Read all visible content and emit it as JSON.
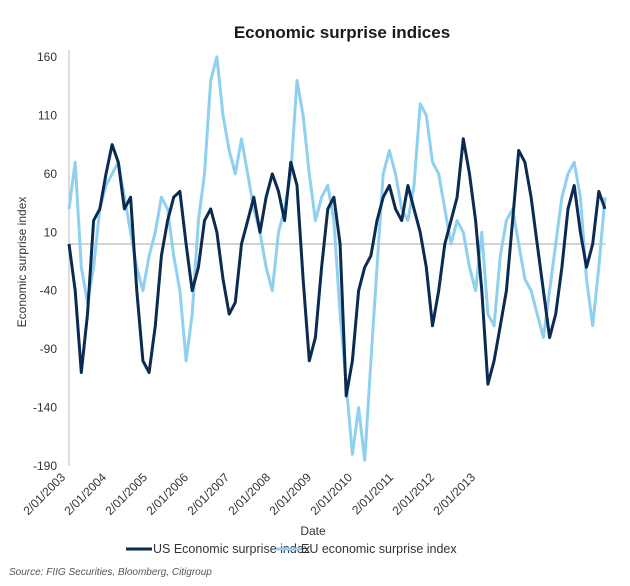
{
  "chart_data": {
    "type": "line",
    "title": "Economic surprise indices",
    "xlabel": "Date",
    "ylabel": "Economic surprise index",
    "x_range": [
      2003.0,
      2013.75
    ],
    "ylim": [
      -190,
      160
    ],
    "yticks": [
      160,
      110,
      60,
      10,
      -40,
      -90,
      -140,
      -190
    ],
    "xtick_labels": [
      "2/01/2003",
      "2/01/2004",
      "2/01/2005",
      "2/01/2006",
      "2/01/2007",
      "2/01/2008",
      "2/01/2009",
      "2/01/2010",
      "2/01/2011",
      "2/01/2012",
      "2/01/2013"
    ],
    "grid": false,
    "reference_line": 0,
    "legend_position": "bottom",
    "series": [
      {
        "name": "US Economic surprise index",
        "color": "#0b2b52",
        "values": [
          0,
          -40,
          -110,
          -60,
          20,
          30,
          60,
          85,
          70,
          30,
          40,
          -40,
          -100,
          -110,
          -70,
          -10,
          20,
          40,
          45,
          0,
          -40,
          -20,
          20,
          30,
          10,
          -30,
          -60,
          -50,
          0,
          20,
          40,
          10,
          40,
          60,
          45,
          20,
          70,
          50,
          -30,
          -100,
          -80,
          -20,
          30,
          40,
          0,
          -130,
          -100,
          -40,
          -20,
          -10,
          20,
          40,
          50,
          30,
          20,
          50,
          30,
          10,
          -20,
          -70,
          -40,
          0,
          20,
          40,
          90,
          60,
          20,
          -40,
          -120,
          -100,
          -70,
          -40,
          20,
          80,
          70,
          40,
          0,
          -40,
          -80,
          -60,
          -20,
          30,
          50,
          10,
          -20,
          0,
          45,
          30
        ]
      },
      {
        "name": "EU economic surprise index",
        "color": "#8fd0f0",
        "values": [
          30,
          70,
          -20,
          -50,
          -20,
          30,
          50,
          60,
          70,
          40,
          10,
          -20,
          -40,
          -10,
          10,
          40,
          30,
          -10,
          -40,
          -100,
          -60,
          20,
          60,
          140,
          160,
          110,
          80,
          60,
          90,
          60,
          30,
          10,
          -20,
          -40,
          10,
          30,
          60,
          140,
          110,
          60,
          20,
          40,
          50,
          20,
          -60,
          -120,
          -180,
          -140,
          -185,
          -100,
          -20,
          60,
          80,
          60,
          30,
          20,
          50,
          120,
          110,
          70,
          60,
          30,
          0,
          20,
          10,
          -20,
          -40,
          10,
          -60,
          -70,
          -10,
          20,
          30,
          0,
          -30,
          -40,
          -60,
          -80,
          -40,
          0,
          40,
          60,
          70,
          40,
          -30,
          -70,
          -20,
          40
        ]
      }
    ]
  },
  "source": "Source: FIIG Securities, Bloomberg, Citigroup"
}
